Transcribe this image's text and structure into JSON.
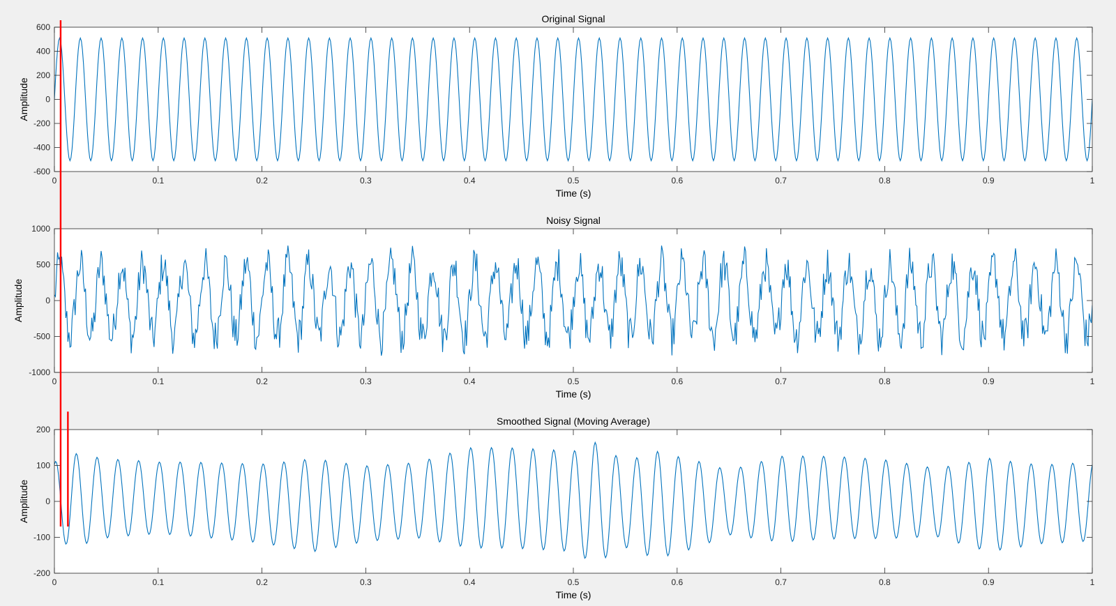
{
  "colors": {
    "figure_background": "#f0f0f0",
    "axes_background": "#ffffff",
    "axes_edge": "#262626",
    "series_line": "#0072bd",
    "annotation_marker": "#ff0000"
  },
  "chart_data": [
    {
      "type": "line",
      "title": "Original Signal",
      "xlabel": "Time (s)",
      "ylabel": "Amplitude",
      "xlim": [
        0,
        1
      ],
      "ylim": [
        -600,
        600
      ],
      "xticks": [
        0,
        0.1,
        0.2,
        0.3,
        0.4,
        0.5,
        0.6,
        0.7,
        0.8,
        0.9,
        1
      ],
      "xtick_labels": [
        "0",
        "0.1",
        "0.2",
        "0.3",
        "0.4",
        "0.5",
        "0.6",
        "0.7",
        "0.8",
        "0.9",
        "1"
      ],
      "yticks": [
        -600,
        -400,
        -200,
        0,
        200,
        400,
        600
      ],
      "ytick_labels": [
        "-600",
        "-400",
        "-200",
        "0",
        "200",
        "400",
        "600"
      ],
      "grid": false,
      "series": [
        {
          "signal": "sine",
          "frequency_hz": 50,
          "amplitude": 510,
          "phase_rad": 0,
          "x_start": 0,
          "x_end": 1,
          "samples": 1001
        }
      ]
    },
    {
      "type": "line",
      "title": "Noisy Signal",
      "xlabel": "Time (s)",
      "ylabel": "Amplitude",
      "xlim": [
        0,
        1
      ],
      "ylim": [
        -1000,
        1000
      ],
      "xticks": [
        0,
        0.1,
        0.2,
        0.3,
        0.4,
        0.5,
        0.6,
        0.7,
        0.8,
        0.9,
        1
      ],
      "xtick_labels": [
        "0",
        "0.1",
        "0.2",
        "0.3",
        "0.4",
        "0.5",
        "0.6",
        "0.7",
        "0.8",
        "0.9",
        "1"
      ],
      "yticks": [
        -1000,
        -500,
        0,
        500,
        1000
      ],
      "ytick_labels": [
        "-1000",
        "-500",
        "0",
        "500",
        "1000"
      ],
      "grid": false,
      "series": [
        {
          "signal": "sine_plus_noise",
          "frequency_hz": 50,
          "amplitude": 510,
          "noise_range": [
            -260,
            260
          ],
          "x_start": 0,
          "x_end": 1,
          "samples": 1001
        }
      ]
    },
    {
      "type": "line",
      "title": "Smoothed Signal (Moving Average)",
      "xlabel": "Time (s)",
      "ylabel": "Amplitude",
      "xlim": [
        0,
        1
      ],
      "ylim": [
        -200,
        200
      ],
      "xticks": [
        0,
        0.1,
        0.2,
        0.3,
        0.4,
        0.5,
        0.6,
        0.7,
        0.8,
        0.9,
        1
      ],
      "xtick_labels": [
        "0",
        "0.1",
        "0.2",
        "0.3",
        "0.4",
        "0.5",
        "0.6",
        "0.7",
        "0.8",
        "0.9",
        "1"
      ],
      "yticks": [
        -200,
        -100,
        0,
        100,
        200
      ],
      "ytick_labels": [
        "-200",
        "-100",
        "0",
        "100",
        "200"
      ],
      "grid": false,
      "series": [
        {
          "signal": "sine_varying_amplitude",
          "frequency_hz": 50,
          "x_start": 0,
          "x_end": 1,
          "samples": 1001,
          "envelope_x": [
            0,
            0.02,
            0.05,
            0.1,
            0.2,
            0.25,
            0.3,
            0.35,
            0.4,
            0.45,
            0.5,
            0.52,
            0.55,
            0.58,
            0.62,
            0.65,
            0.7,
            0.8,
            0.85,
            0.9,
            0.95,
            1
          ],
          "envelope_amplitude": [
            110,
            130,
            110,
            100,
            110,
            130,
            105,
            105,
            140,
            140,
            140,
            170,
            120,
            150,
            120,
            90,
            120,
            110,
            95,
            130,
            110,
            110
          ]
        }
      ]
    }
  ],
  "annotations": {
    "markers": [
      {
        "x": 0.006,
        "y_top": 600,
        "y_bottom": -70,
        "reference_panel": 0,
        "end_panel": 2
      },
      {
        "x": 0.013,
        "y_top": 250,
        "y_bottom": -70,
        "reference_panel": 2,
        "end_panel": 2
      }
    ]
  }
}
